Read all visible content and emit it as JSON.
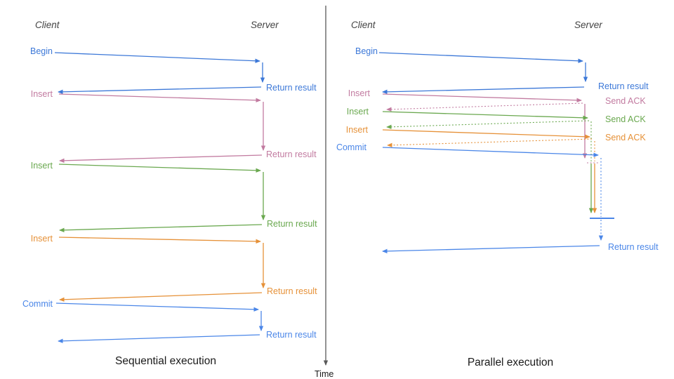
{
  "colors": {
    "blue": "#3c78d8",
    "commit_blue": "#4a86e8",
    "pink": "#c27ba0",
    "green": "#6aa84f",
    "orange": "#e69138",
    "heading": "#434343",
    "title": "#1a1a1a",
    "axis": "#595959"
  },
  "left": {
    "title": "Sequential execution",
    "client": "Client",
    "server": "Server",
    "begin": {
      "label": "Begin",
      "result": "Return result"
    },
    "insert1": {
      "label": "Insert",
      "result": "Return result"
    },
    "insert2": {
      "label": "Insert",
      "result": "Return result"
    },
    "insert3": {
      "label": "Insert",
      "result": "Return result"
    },
    "commit": {
      "label": "Commit",
      "result": "Return result"
    }
  },
  "right": {
    "title": "Parallel execution",
    "client": "Client",
    "server": "Server",
    "begin": {
      "label": "Begin",
      "result": "Return result"
    },
    "insert1": {
      "label": "Insert",
      "ack": "Send ACK"
    },
    "insert2": {
      "label": "Insert",
      "ack": "Send ACK"
    },
    "insert3": {
      "label": "Insert",
      "ack": "Send ACK"
    },
    "commit": {
      "label": "Commit",
      "result": "Return result"
    }
  },
  "time_axis": {
    "label": "Time"
  }
}
